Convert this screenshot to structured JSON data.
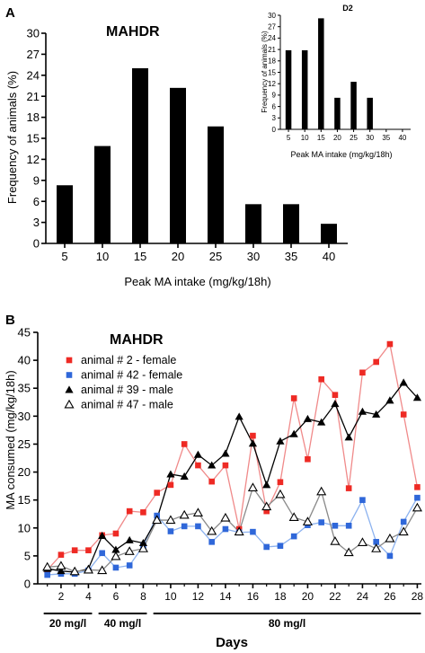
{
  "chart_data": [
    {
      "panel": "A",
      "type": "bar",
      "title": "MAHDR",
      "xlabel": "Peak MA intake (mg/kg/18h)",
      "ylabel": "Frequency of animals  (%)",
      "categories": [
        "5",
        "10",
        "15",
        "20",
        "25",
        "30",
        "35",
        "40"
      ],
      "values": [
        8.3,
        13.9,
        25.0,
        22.2,
        16.7,
        5.6,
        5.6,
        2.8
      ],
      "ylim": [
        0,
        30
      ],
      "yticks": [
        "0",
        "3",
        "6",
        "9",
        "12",
        "15",
        "18",
        "21",
        "24",
        "27",
        "30"
      ],
      "grid": false,
      "color": "#000000"
    },
    {
      "panel": "A-inset",
      "type": "bar",
      "title": "D2",
      "xlabel": "Peak MA intake (mg/kg/18h)",
      "ylabel": "Frequency of animals  (%)",
      "categories": [
        "5",
        "10",
        "15",
        "20",
        "25",
        "30",
        "35",
        "40"
      ],
      "values": [
        20.8,
        20.8,
        29.2,
        8.3,
        12.5,
        8.3,
        0,
        0
      ],
      "ylim": [
        0,
        30
      ],
      "yticks": [
        "0",
        "3",
        "6",
        "9",
        "12",
        "15",
        "18",
        "21",
        "24",
        "27",
        "30"
      ],
      "grid": false,
      "color": "#000000"
    },
    {
      "panel": "B",
      "type": "line",
      "title": "MAHDR",
      "xlabel": "Days",
      "ylabel": "MA consumed  (mg/kg/18h)",
      "xlim": [
        0.3,
        28.3
      ],
      "ylim": [
        0,
        45
      ],
      "xticks": [
        "2",
        "4",
        "6",
        "8",
        "10",
        "12",
        "14",
        "16",
        "18",
        "20",
        "22",
        "24",
        "26",
        "28"
      ],
      "yticks": [
        "0",
        "5",
        "10",
        "15",
        "20",
        "25",
        "30",
        "35",
        "40",
        "45"
      ],
      "grid": false,
      "legend": "top-left",
      "x": [
        1,
        2,
        3,
        4,
        5,
        6,
        7,
        8,
        9,
        10,
        11,
        12,
        13,
        14,
        15,
        16,
        17,
        18,
        19,
        20,
        21,
        22,
        23,
        24,
        25,
        26,
        27,
        28
      ],
      "series": [
        {
          "name": "animal # 2 - female",
          "marker": "square",
          "marker_color": "#ee2a24",
          "line_color": "#f08a8a",
          "values": [
            2.5,
            5.2,
            6.0,
            6.0,
            8.7,
            9.0,
            13.0,
            12.8,
            16.3,
            17.7,
            25.0,
            21.2,
            18.3,
            21.2,
            9.8,
            26.5,
            13.0,
            18.2,
            33.2,
            22.3,
            36.6,
            33.8,
            17.1,
            37.8,
            39.7,
            42.9,
            30.3,
            17.3
          ]
        },
        {
          "name": "animal # 42 - female",
          "marker": "square",
          "marker_color": "#2f67d9",
          "line_color": "#8cb2ef",
          "values": [
            1.6,
            1.8,
            1.8,
            2.4,
            5.5,
            2.9,
            3.3,
            6.8,
            12.2,
            9.4,
            10.3,
            10.3,
            7.5,
            9.8,
            9.2,
            9.3,
            6.6,
            6.8,
            8.5,
            10.5,
            11.0,
            10.4,
            10.4,
            15.0,
            7.5,
            5.0,
            11.1,
            15.4
          ]
        },
        {
          "name": "animal # 39 - male",
          "marker": "triangle-filled",
          "marker_color": "#000000",
          "line_color": "#000000",
          "values": [
            2.7,
            2.3,
            2.1,
            2.7,
            8.6,
            6.1,
            7.8,
            7.3,
            11.6,
            19.6,
            19.2,
            23.1,
            21.2,
            23.3,
            29.9,
            25.1,
            17.7,
            25.5,
            26.8,
            29.5,
            28.9,
            32.2,
            26.2,
            30.8,
            30.3,
            32.8,
            36.0,
            33.3
          ]
        },
        {
          "name": "animal # 47 - male",
          "marker": "triangle-open",
          "marker_color": "#000000",
          "line_color": "#8a8a8a",
          "values": [
            3.0,
            3.2,
            2.2,
            2.5,
            2.4,
            4.9,
            5.8,
            6.3,
            11.4,
            11.4,
            12.3,
            12.7,
            9.4,
            11.8,
            9.3,
            17.2,
            13.8,
            16.0,
            11.9,
            11.1,
            16.5,
            7.6,
            5.6,
            7.4,
            6.3,
            8.1,
            9.3,
            13.6
          ]
        }
      ],
      "phases": [
        {
          "label": "20 mg/l",
          "from": 1,
          "to": 4
        },
        {
          "label": "40 mg/l",
          "from": 5,
          "to": 8
        },
        {
          "label": "80 mg/l",
          "from": 9,
          "to": 28
        }
      ]
    }
  ],
  "panel_labels": {
    "a": "A",
    "b": "B"
  }
}
